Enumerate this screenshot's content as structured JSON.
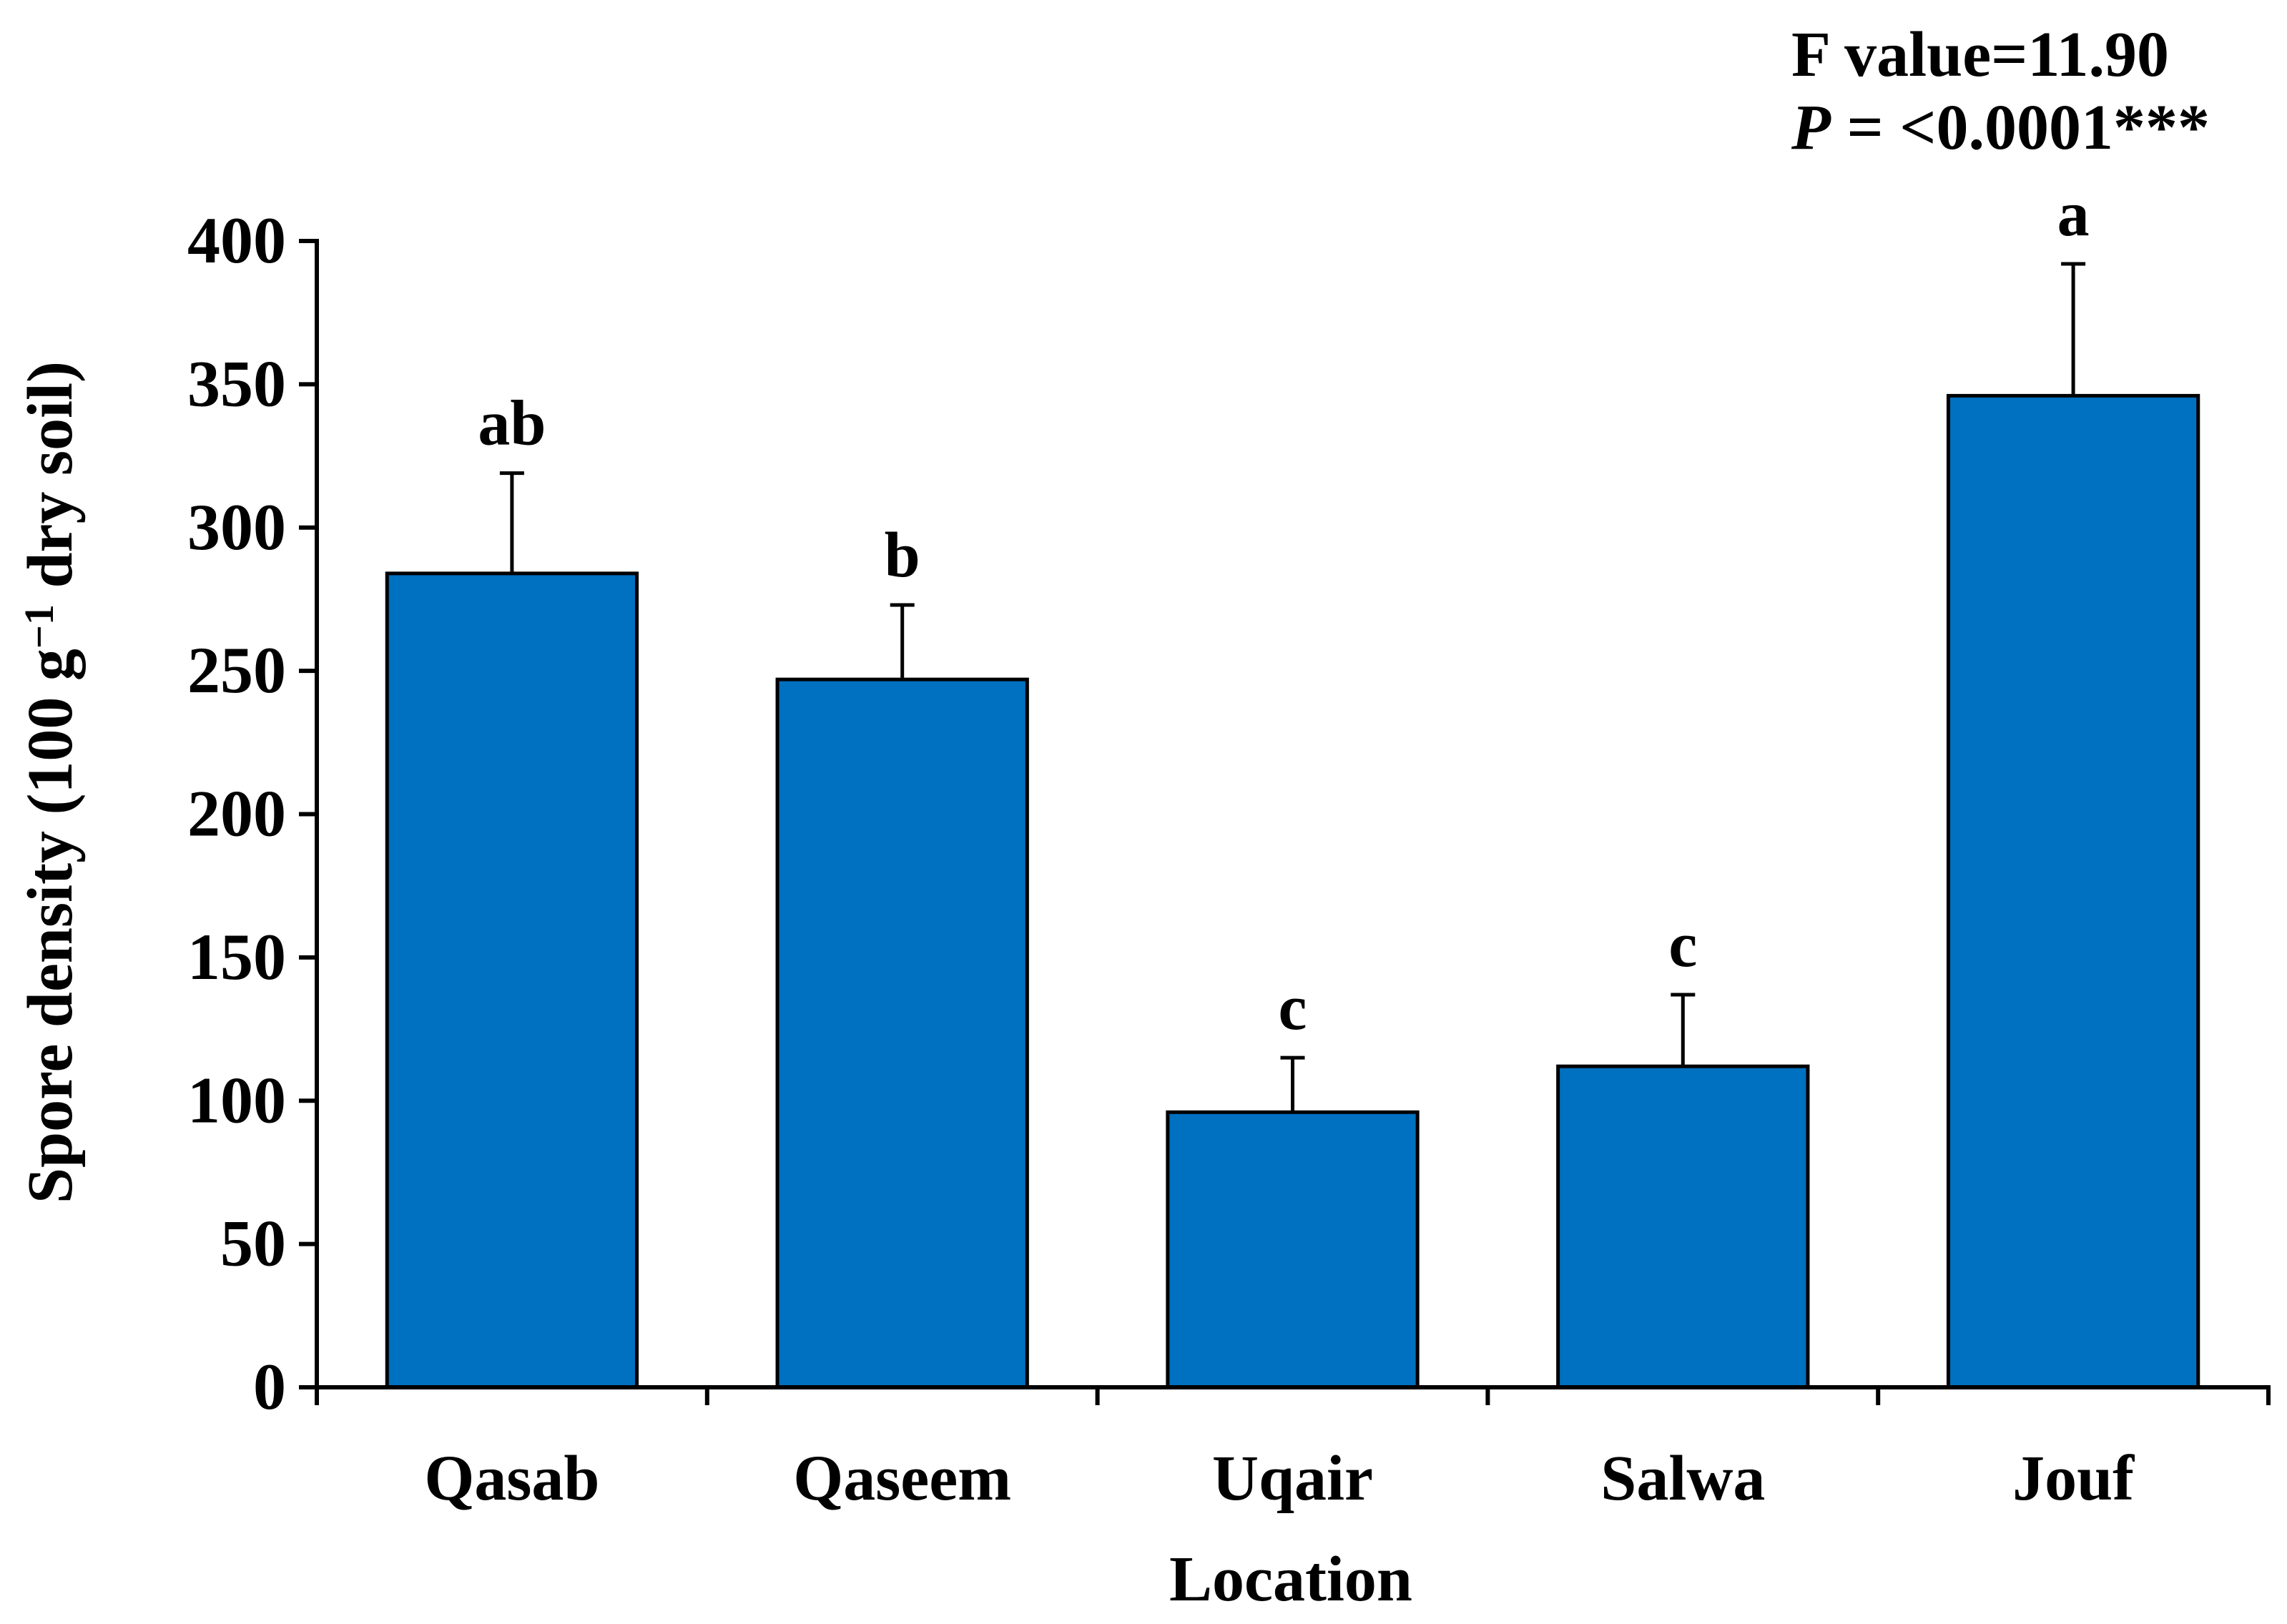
{
  "chart_data": {
    "type": "bar",
    "categories": [
      "Qasab",
      "Qaseem",
      "Uqair",
      "Salwa",
      "Jouf"
    ],
    "values": [
      284,
      247,
      96,
      112,
      346
    ],
    "error_upper": [
      35,
      26,
      19,
      25,
      46
    ],
    "significance_letters": [
      "ab",
      "b",
      "c",
      "c",
      "a"
    ],
    "xlabel": "Location",
    "ylabel": {
      "text": "Spore density (100 g",
      "superscript": "−1",
      "text_after": " dry soil)"
    },
    "ylim": [
      0,
      400
    ],
    "yticks": [
      0,
      50,
      100,
      150,
      200,
      250,
      300,
      350,
      400
    ],
    "annotation": {
      "line1": "F value=11.90",
      "line2_italic": "P",
      "line2_rest": " = <0.0001***"
    },
    "legend": false,
    "grid": false,
    "colors": {
      "bar_fill": "#0070C0",
      "bar_stroke": "#000000",
      "axis": "#000000"
    }
  }
}
